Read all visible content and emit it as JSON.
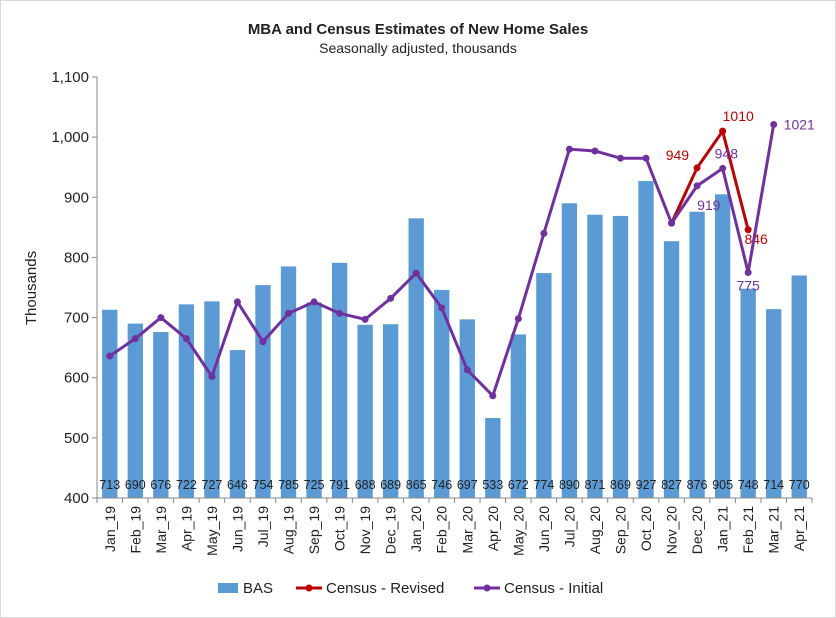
{
  "chart_data": {
    "type": "bar-line",
    "title": "MBA and Census Estimates of New Home Sales",
    "subtitle": "Seasonally adjusted, thousands",
    "y_label": "Thousands",
    "categories": [
      "Jan_19",
      "Feb_19",
      "Mar_19",
      "Apr_19",
      "May_19",
      "Jun_19",
      "Jul_19",
      "Aug_19",
      "Sep_19",
      "Oct_19",
      "Nov_19",
      "Dec_19",
      "Jan_20",
      "Feb_20",
      "Mar_20",
      "Apr_20",
      "May_20",
      "Jun_20",
      "Jul_20",
      "Aug_20",
      "Sep_20",
      "Oct_20",
      "Nov_20",
      "Dec_20",
      "Jan_21",
      "Feb_21",
      "Mar_21",
      "Apr_21"
    ],
    "series": [
      {
        "name": "BAS",
        "color": "#5b9bd5",
        "kind": "bar",
        "values": [
          713,
          690,
          676,
          722,
          727,
          646,
          754,
          785,
          725,
          791,
          688,
          689,
          865,
          746,
          697,
          533,
          672,
          774,
          890,
          871,
          869,
          927,
          827,
          876,
          905,
          748,
          714,
          770
        ]
      },
      {
        "name": "Census - Revised",
        "color": "#c00000",
        "kind": "line",
        "values": [
          null,
          null,
          null,
          null,
          null,
          null,
          null,
          null,
          null,
          null,
          null,
          null,
          null,
          null,
          null,
          null,
          null,
          null,
          null,
          null,
          null,
          null,
          857,
          949,
          1010,
          846,
          null,
          null
        ]
      },
      {
        "name": "Census - Initial",
        "color": "#7030a0",
        "kind": "line",
        "values": [
          636,
          665,
          700,
          665,
          602,
          726,
          660,
          707,
          726,
          707,
          697,
          732,
          774,
          716,
          613,
          570,
          698,
          840,
          980,
          977,
          965,
          965,
          857,
          919,
          948,
          775,
          1021,
          null
        ]
      }
    ],
    "ylim": [
      400,
      1100
    ],
    "yticks": [
      400,
      500,
      600,
      700,
      800,
      900,
      {
        "value": 1000,
        "label": "1,000"
      },
      {
        "value": 1100,
        "label": "1,100"
      }
    ],
    "legend": "bottom"
  }
}
